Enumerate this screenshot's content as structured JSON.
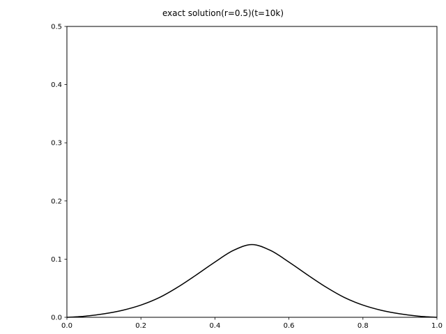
{
  "chart_data": {
    "type": "line",
    "title": "exact solution(r=0.5)(t=10k)",
    "xlabel": "",
    "ylabel": "",
    "xlim": [
      0.0,
      1.0
    ],
    "ylim": [
      0.0,
      0.5
    ],
    "grid": false,
    "x_ticks": [
      "0.0",
      "0.2",
      "0.4",
      "0.6",
      "0.8",
      "1.0"
    ],
    "y_ticks": [
      "0.0",
      "0.1",
      "0.2",
      "0.3",
      "0.4",
      "0.5"
    ],
    "line_color": "#000000",
    "series": [
      {
        "x": [
          0.0,
          0.05,
          0.1,
          0.15,
          0.2,
          0.25,
          0.3,
          0.35,
          0.4,
          0.45,
          0.5,
          0.55,
          0.6,
          0.65,
          0.7,
          0.75,
          0.8,
          0.85,
          0.9,
          0.95,
          1.0
        ],
        "y": [
          0.0,
          0.002,
          0.006,
          0.012,
          0.021,
          0.034,
          0.052,
          0.073,
          0.095,
          0.115,
          0.125,
          0.115,
          0.095,
          0.073,
          0.052,
          0.034,
          0.021,
          0.012,
          0.006,
          0.002,
          0.0
        ]
      }
    ]
  }
}
